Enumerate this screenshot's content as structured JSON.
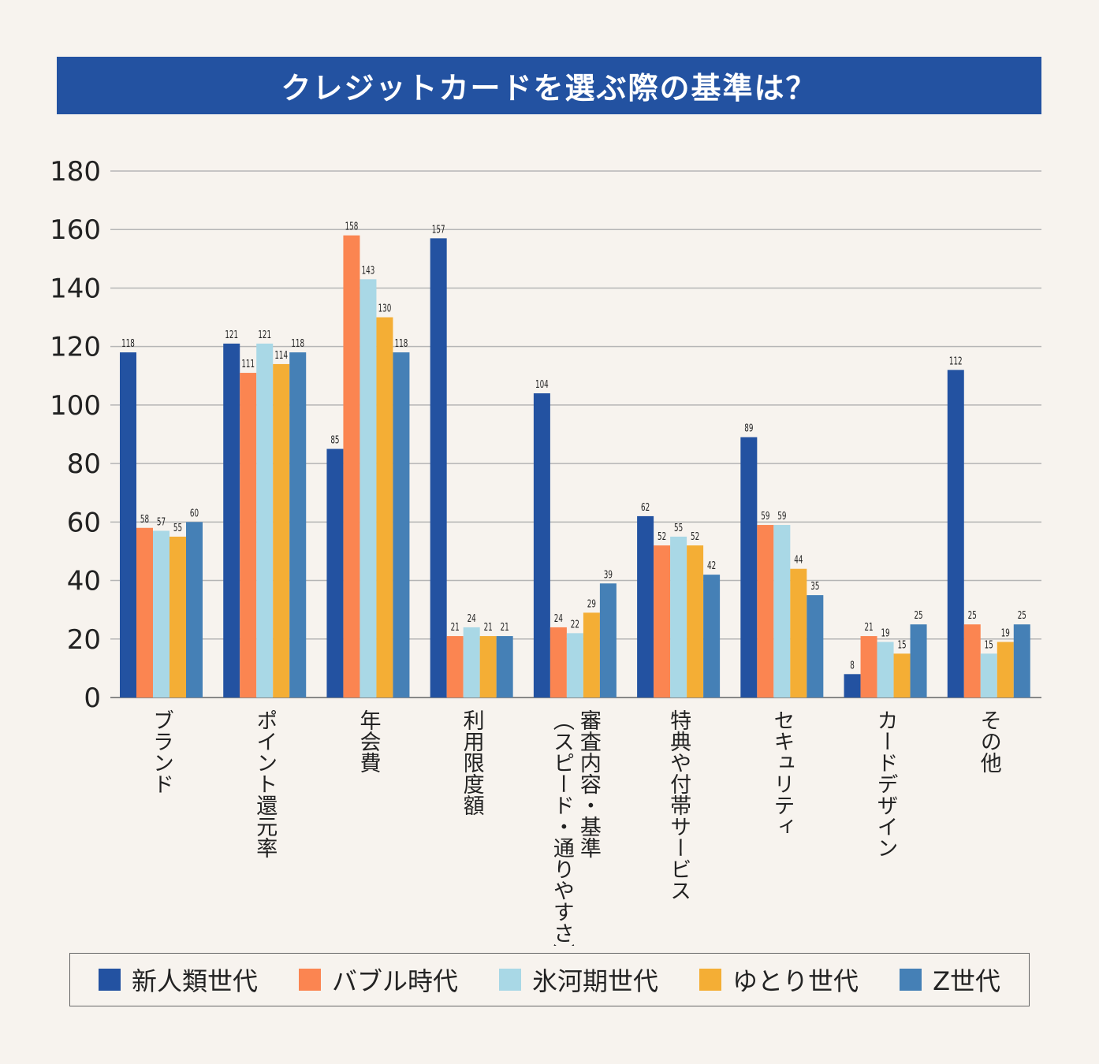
{
  "title": "クレジットカードを選ぶ際の基準は？",
  "chart_data": {
    "type": "bar",
    "title": "クレジットカードを選ぶ際の基準は？",
    "categories": [
      "ブランド",
      "ポイント還元率",
      "年会費",
      "利用限度額",
      "審査内容・基準（スピード・通りやすさ）",
      "特典や付帯サービス",
      "セキュリティ",
      "カードデザイン",
      "その他"
    ],
    "category_lines": [
      [
        "ブランド"
      ],
      [
        "ポイント還元率"
      ],
      [
        "年会費"
      ],
      [
        "利用限度額"
      ],
      [
        "審査内容・基準",
        "（スピード・通りやすさ）"
      ],
      [
        "特典や付帯サービス"
      ],
      [
        "セキュリティ"
      ],
      [
        "カードデザイン"
      ],
      [
        "その他"
      ]
    ],
    "series": [
      {
        "name": "新人類世代",
        "color": "#2352a1",
        "values": [
          118,
          121,
          85,
          157,
          104,
          62,
          89,
          8,
          112
        ]
      },
      {
        "name": "バブル時代",
        "color": "#fb8551",
        "values": [
          58,
          111,
          158,
          21,
          24,
          52,
          59,
          21,
          25
        ]
      },
      {
        "name": "氷河期世代",
        "color": "#a9d8e6",
        "values": [
          57,
          121,
          143,
          24,
          22,
          55,
          59,
          19,
          15
        ]
      },
      {
        "name": "ゆとり世代",
        "color": "#f4ae35",
        "values": [
          55,
          114,
          130,
          21,
          29,
          52,
          44,
          15,
          19
        ]
      },
      {
        "name": "Z世代",
        "color": "#4580b6",
        "values": [
          60,
          118,
          118,
          21,
          39,
          42,
          35,
          25,
          25
        ]
      }
    ],
    "ylim": [
      0,
      180
    ],
    "yticks": [
      "0",
      "20",
      "40",
      "60",
      "80",
      "100",
      "120",
      "140",
      "160",
      "180"
    ],
    "grid": true,
    "legend_position": "bottom"
  }
}
